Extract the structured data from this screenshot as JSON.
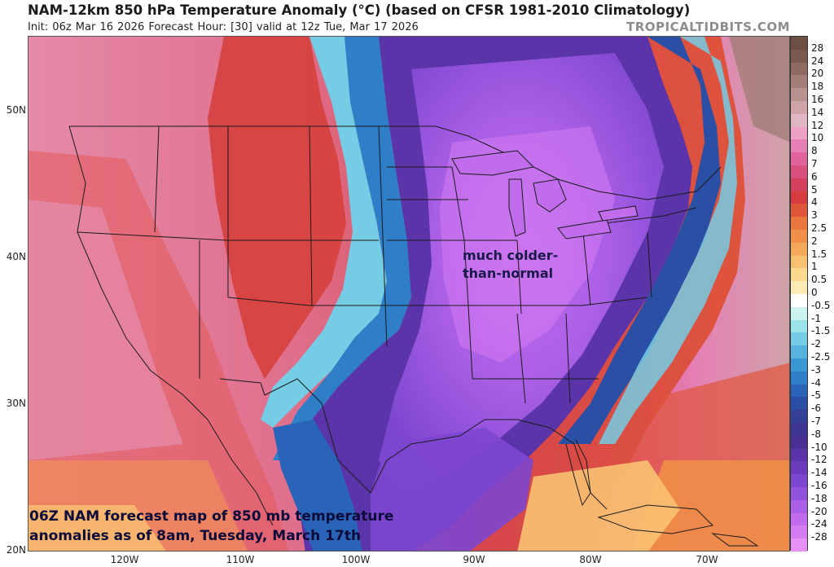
{
  "header": {
    "title": "NAM-12km 850 hPa Temperature Anomaly (°C) (based on CFSR 1981-2010 Climatology)",
    "subtitle": "Init: 06z Mar 16 2026   Forecast Hour: [30]   valid at 12z Tue, Mar 17 2026",
    "site": "TROPICALTIDBITS.COM"
  },
  "axes": {
    "lat_labels": [
      "50N",
      "40N",
      "30N",
      "20N"
    ],
    "lon_labels": [
      "120W",
      "110W",
      "100W",
      "90W",
      "80W",
      "70W"
    ]
  },
  "colorbar": {
    "labels": [
      "28",
      "24",
      "20",
      "18",
      "16",
      "14",
      "12",
      "10",
      "8",
      "7",
      "6",
      "5",
      "4",
      "3",
      "2.5",
      "2",
      "1.5",
      "1",
      "0.5",
      "0",
      "-0.5",
      "-1",
      "-1.5",
      "-2",
      "-2.5",
      "-3",
      "-4",
      "-5",
      "-6",
      "-7",
      "-8",
      "-10",
      "-12",
      "-14",
      "-16",
      "-18",
      "-20",
      "-24",
      "-28"
    ],
    "colors": [
      "#7a5a4e",
      "#8e6a62",
      "#a37d78",
      "#b9918f",
      "#cfa3a8",
      "#e2b5c2",
      "#eea1c4",
      "#e67fb4",
      "#e0639c",
      "#d94f7e",
      "#d4415e",
      "#d83b3f",
      "#e0563a",
      "#e8763d",
      "#f09048",
      "#f5aa5a",
      "#f9c272",
      "#fcd98f",
      "#fdecb5",
      "#ffffff",
      "#cdf2f2",
      "#99e3ea",
      "#74cde4",
      "#55b3dd",
      "#3a98d4",
      "#2f7ec8",
      "#2a64b8",
      "#2c4fa6",
      "#343f98",
      "#3f3592",
      "#4a2f95",
      "#5a34a8",
      "#6a3cbc",
      "#7d46cf",
      "#9352dc",
      "#aa5fe6",
      "#c16ced",
      "#d67cf2",
      "#e790f6"
    ]
  },
  "annotations": {
    "region_note": "much colder-than-normal",
    "region_note_line1": "much colder-",
    "region_note_line2": "than-normal",
    "caption_line1": "06Z NAM forecast map of 850 mb temperature",
    "caption_line2": "anomalies as of 8am, Tuesday, March 17th"
  }
}
